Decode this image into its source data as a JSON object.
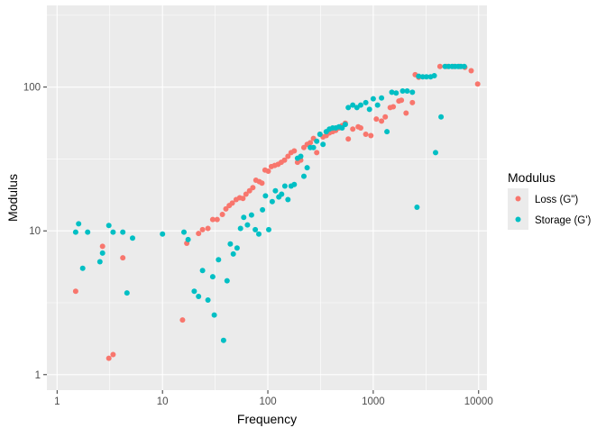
{
  "chart_data": {
    "type": "scatter",
    "title": "",
    "xlabel": "Frequency",
    "ylabel": "Modulus",
    "xscale": "log10",
    "yscale": "log10",
    "xlim": [
      0.8,
      12000
    ],
    "ylim": [
      0.78,
      370
    ],
    "x_ticks": [
      1,
      10,
      100,
      1000,
      10000
    ],
    "x_tick_labels": [
      "1",
      "10",
      "100",
      "1000",
      "10000"
    ],
    "y_ticks": [
      1,
      10,
      100
    ],
    "y_tick_labels": [
      "1",
      "10",
      "100"
    ],
    "grid": true,
    "legend": {
      "title": "Modulus",
      "position": "right",
      "entries": [
        "Loss (G\")",
        "Storage (G')"
      ]
    },
    "colors": {
      "panel": "#EBEBEB",
      "grid": "#FFFFFF",
      "loss": "#F8766D",
      "storage": "#00BFC4",
      "axis_text": "#4D4D4D",
      "title_text": "#000000"
    },
    "series": [
      {
        "name": "Loss (G\")",
        "color": "#F8766D",
        "points": [
          [
            1.5,
            3.8
          ],
          [
            2.7,
            7.8
          ],
          [
            3.1,
            1.3
          ],
          [
            3.4,
            1.38
          ],
          [
            4.2,
            6.5
          ],
          [
            15.5,
            2.4
          ],
          [
            17,
            8.2
          ],
          [
            22,
            9.6
          ],
          [
            24,
            10.2
          ],
          [
            27,
            10.4
          ],
          [
            30,
            12
          ],
          [
            33,
            12
          ],
          [
            37,
            13
          ],
          [
            40,
            14.2
          ],
          [
            43,
            15
          ],
          [
            46,
            15.6
          ],
          [
            50,
            16.5
          ],
          [
            54,
            17
          ],
          [
            58,
            16.8
          ],
          [
            62,
            18
          ],
          [
            67,
            19
          ],
          [
            72,
            20
          ],
          [
            77,
            22.5
          ],
          [
            83,
            22
          ],
          [
            88,
            21.5
          ],
          [
            94,
            26.5
          ],
          [
            101,
            26
          ],
          [
            108,
            28
          ],
          [
            116,
            28.5
          ],
          [
            125,
            29
          ],
          [
            134,
            30
          ],
          [
            144,
            31
          ],
          [
            155,
            33
          ],
          [
            166,
            35
          ],
          [
            178,
            36
          ],
          [
            191,
            30
          ],
          [
            205,
            31
          ],
          [
            220,
            38
          ],
          [
            236,
            40
          ],
          [
            253,
            41
          ],
          [
            271,
            44
          ],
          [
            291,
            35
          ],
          [
            312,
            47
          ],
          [
            334,
            45
          ],
          [
            358,
            46
          ],
          [
            384,
            48
          ],
          [
            412,
            49
          ],
          [
            441,
            50
          ],
          [
            473,
            52
          ],
          [
            507,
            54
          ],
          [
            543,
            56
          ],
          [
            580,
            43.5
          ],
          [
            640,
            51
          ],
          [
            720,
            53
          ],
          [
            760,
            52
          ],
          [
            850,
            47
          ],
          [
            950,
            46
          ],
          [
            1070,
            60
          ],
          [
            1200,
            58
          ],
          [
            1300,
            62
          ],
          [
            1450,
            72
          ],
          [
            1550,
            73
          ],
          [
            1750,
            80
          ],
          [
            1850,
            81
          ],
          [
            2050,
            66
          ],
          [
            2350,
            78
          ],
          [
            2500,
            122
          ],
          [
            2700,
            117
          ],
          [
            4300,
            139
          ],
          [
            5000,
            139
          ],
          [
            5800,
            139
          ],
          [
            6600,
            139
          ],
          [
            7400,
            137
          ],
          [
            8500,
            130
          ],
          [
            9800,
            105
          ]
        ]
      },
      {
        "name": "Storage (G')",
        "color": "#00BFC4",
        "points": [
          [
            1.5,
            9.8
          ],
          [
            1.6,
            11.2
          ],
          [
            1.75,
            5.5
          ],
          [
            1.95,
            9.8
          ],
          [
            2.55,
            6.1
          ],
          [
            2.7,
            7
          ],
          [
            3.1,
            10.9
          ],
          [
            3.4,
            9.8
          ],
          [
            4.2,
            9.8
          ],
          [
            4.6,
            3.7
          ],
          [
            5.2,
            8.9
          ],
          [
            10,
            9.5
          ],
          [
            16,
            9.8
          ],
          [
            17.5,
            8.7
          ],
          [
            20,
            3.8
          ],
          [
            22,
            3.5
          ],
          [
            24,
            5.3
          ],
          [
            27,
            3.3
          ],
          [
            30,
            4.8
          ],
          [
            31,
            2.6
          ],
          [
            34,
            6.3
          ],
          [
            38,
            1.73
          ],
          [
            41,
            4.5
          ],
          [
            44,
            8.1
          ],
          [
            47,
            6.9
          ],
          [
            51,
            7.6
          ],
          [
            55,
            10.4
          ],
          [
            59,
            12.4
          ],
          [
            64,
            11
          ],
          [
            70,
            12.9
          ],
          [
            76,
            10.2
          ],
          [
            82,
            9.5
          ],
          [
            89,
            14
          ],
          [
            95,
            17.5
          ],
          [
            102,
            10.2
          ],
          [
            110,
            16
          ],
          [
            118,
            19
          ],
          [
            127,
            17.2
          ],
          [
            135,
            18
          ],
          [
            145,
            20.5
          ],
          [
            155,
            16.5
          ],
          [
            166,
            20.5
          ],
          [
            178,
            21
          ],
          [
            191,
            32
          ],
          [
            205,
            33
          ],
          [
            220,
            24
          ],
          [
            236,
            27.5
          ],
          [
            253,
            38
          ],
          [
            271,
            38
          ],
          [
            291,
            42
          ],
          [
            312,
            47
          ],
          [
            334,
            40
          ],
          [
            358,
            49
          ],
          [
            384,
            51
          ],
          [
            412,
            52
          ],
          [
            441,
            52
          ],
          [
            473,
            53
          ],
          [
            507,
            52
          ],
          [
            543,
            55
          ],
          [
            580,
            72
          ],
          [
            640,
            75
          ],
          [
            700,
            72
          ],
          [
            760,
            75
          ],
          [
            850,
            78
          ],
          [
            920,
            70
          ],
          [
            1000,
            83
          ],
          [
            1100,
            75
          ],
          [
            1200,
            84
          ],
          [
            1350,
            49
          ],
          [
            1500,
            92
          ],
          [
            1650,
            91
          ],
          [
            1900,
            94
          ],
          [
            2100,
            94
          ],
          [
            2350,
            92
          ],
          [
            2600,
            14.6
          ],
          [
            2700,
            119
          ],
          [
            2950,
            118
          ],
          [
            3200,
            118
          ],
          [
            3500,
            118
          ],
          [
            3800,
            120
          ],
          [
            3900,
            35
          ],
          [
            4400,
            62
          ],
          [
            4800,
            139
          ],
          [
            5200,
            139
          ],
          [
            5600,
            139
          ],
          [
            6000,
            139
          ],
          [
            6400,
            139
          ],
          [
            6800,
            139
          ],
          [
            7300,
            139
          ]
        ]
      }
    ]
  }
}
